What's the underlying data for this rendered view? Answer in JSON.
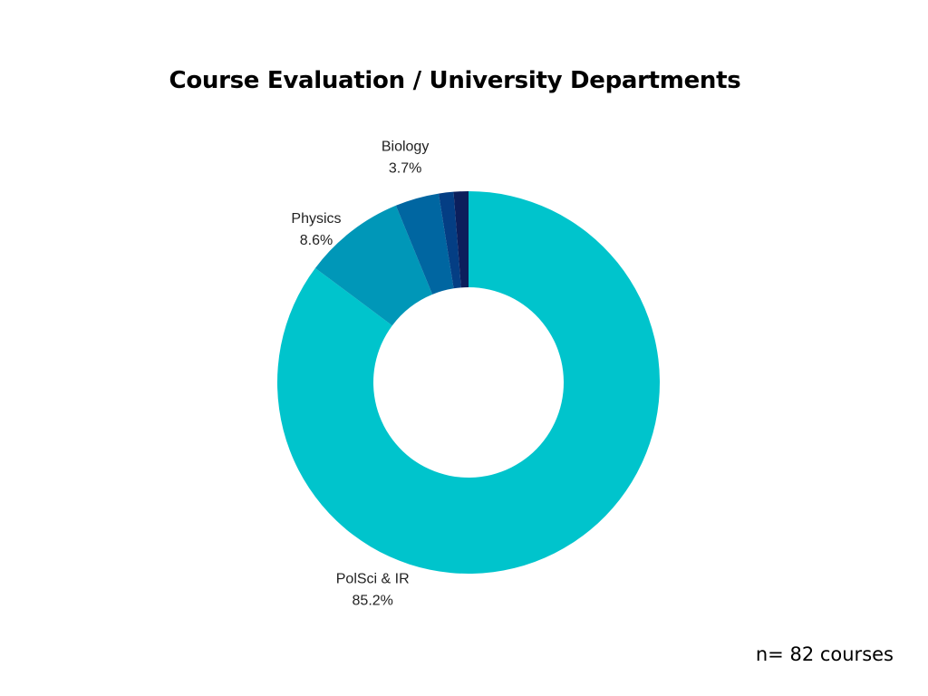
{
  "chart_data": {
    "type": "pie",
    "title": "Course Evaluation / University Departments",
    "donut": true,
    "slices": [
      {
        "label": "PolSci & IR",
        "value": 85.2,
        "value_label": "85.2%",
        "color": "#00C4CC"
      },
      {
        "label": "Physics",
        "value": 8.6,
        "value_label": "8.6%",
        "color": "#0097B8"
      },
      {
        "label": "Biology",
        "value": 3.7,
        "value_label": "3.7%",
        "color": "#0066A1"
      },
      {
        "label": "",
        "value": 1.25,
        "value_label": "",
        "color": "#043E84"
      },
      {
        "label": "",
        "value": 1.25,
        "value_label": "",
        "color": "#0C1F5C"
      }
    ]
  },
  "footnote": "n= 82 courses"
}
